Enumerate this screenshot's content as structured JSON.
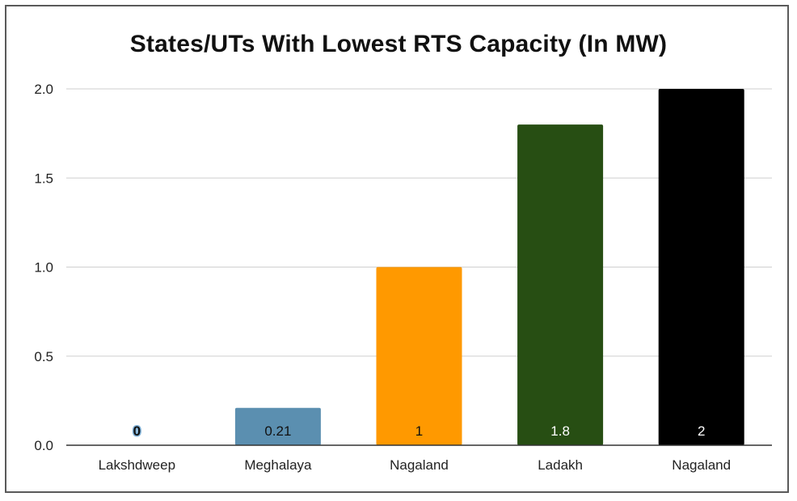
{
  "chart_data": {
    "type": "bar",
    "title": "States/UTs With Lowest RTS Capacity (In MW)",
    "xlabel": "",
    "ylabel": "",
    "categories": [
      "Lakshdweep",
      "Meghalaya",
      "Nagaland",
      "Ladakh",
      "Nagaland"
    ],
    "values": [
      0,
      0.21,
      1,
      1.8,
      2
    ],
    "data_labels": [
      "0",
      "0.21",
      "1",
      "1.8",
      "2"
    ],
    "bar_colors": [
      "#5b8fb0",
      "#5b8fb0",
      "#ff9900",
      "#274e13",
      "#000000"
    ],
    "label_colors": [
      "#111111",
      "#111111",
      "#111111",
      "#ffffff",
      "#ffffff"
    ],
    "ylim": [
      0,
      2.0
    ],
    "yticks": [
      0,
      0.5,
      1.0,
      1.5,
      2.0
    ],
    "ytick_labels": [
      "0.0",
      "0.5",
      "1.0",
      "1.5",
      "2.0"
    ],
    "grid": true,
    "legend": "none"
  }
}
